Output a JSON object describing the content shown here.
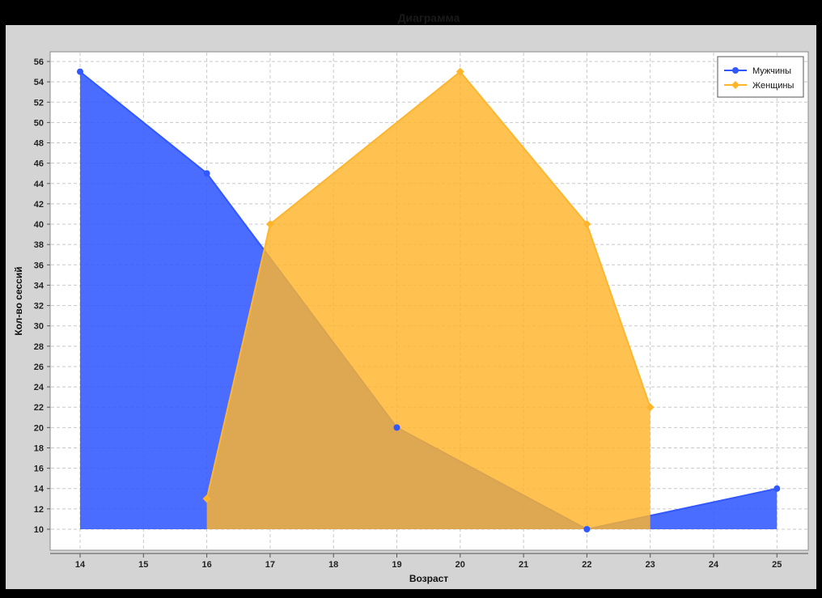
{
  "chart_data": {
    "type": "area",
    "title": "Диаграмма",
    "xlabel": "Возраст",
    "ylabel": "Кол-во сессий",
    "x_ticks": [
      14,
      15,
      16,
      17,
      18,
      19,
      20,
      21,
      22,
      23,
      24,
      25
    ],
    "ylim": [
      10,
      56
    ],
    "y_ticks": [
      10,
      12,
      14,
      16,
      18,
      20,
      22,
      24,
      26,
      28,
      30,
      32,
      34,
      36,
      38,
      40,
      42,
      44,
      46,
      48,
      50,
      52,
      54,
      56
    ],
    "grid": true,
    "legend_position": "top-right",
    "series": [
      {
        "name": "Мужчины",
        "color": "#3158ff",
        "marker": "circle",
        "x": [
          14,
          16,
          19,
          22,
          25
        ],
        "y": [
          55,
          45,
          20,
          10,
          14
        ]
      },
      {
        "name": "Женщины",
        "color": "#ffb52b",
        "marker": "diamond",
        "x": [
          16,
          17,
          20,
          22,
          23
        ],
        "y": [
          13,
          40,
          55,
          40,
          22
        ]
      }
    ]
  }
}
